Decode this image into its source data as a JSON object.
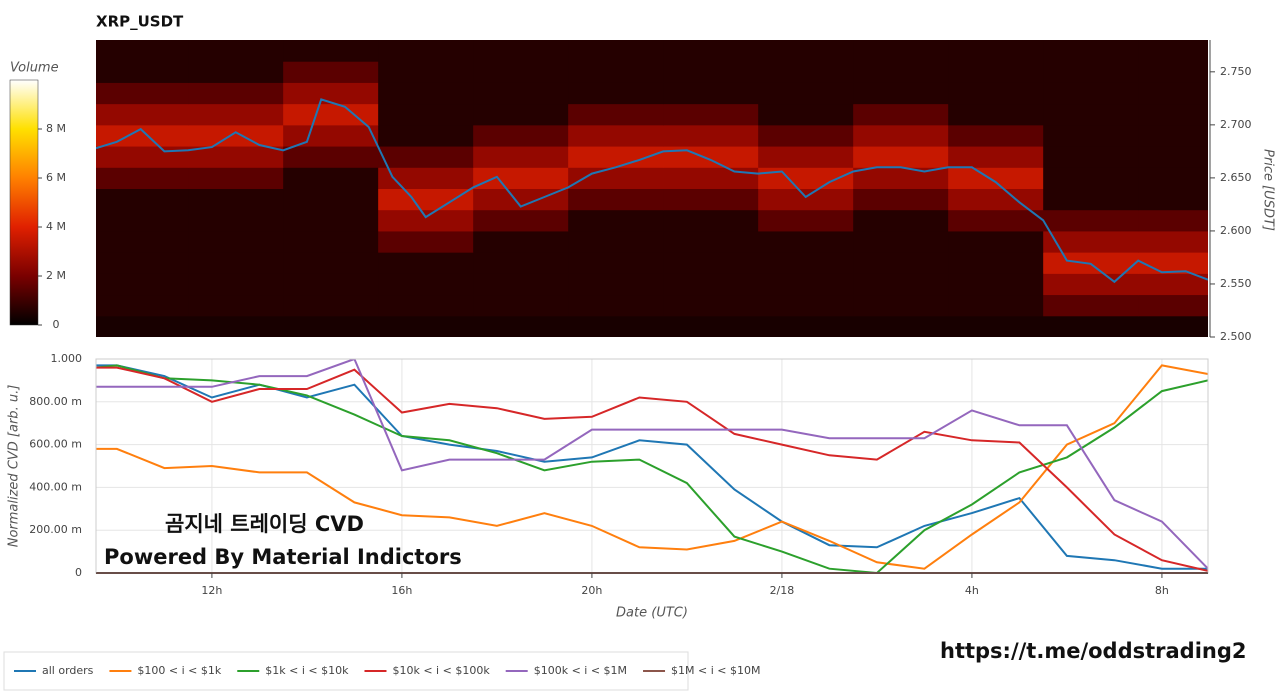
{
  "chart_data": [
    {
      "type": "heatmap",
      "title": "XRP_USDT",
      "ylabel": "Price [USDT]",
      "colorbar_label": "Volume",
      "xlim": [
        9.56,
        32.97
      ],
      "ylim": [
        2.5,
        2.78
      ],
      "yticks": [
        {
          "value": 2.5,
          "label": "2.500"
        },
        {
          "value": 2.55,
          "label": "2.550"
        },
        {
          "value": 2.6,
          "label": "2.600"
        },
        {
          "value": 2.65,
          "label": "2.650"
        },
        {
          "value": 2.7,
          "label": "2.700"
        },
        {
          "value": 2.75,
          "label": "2.750"
        }
      ],
      "clim": [
        0,
        10000000
      ],
      "cticks": [
        0,
        {
          "value": 2000000,
          "label": "2 M"
        },
        {
          "value": 4000000,
          "label": "4 M"
        },
        {
          "value": 6000000,
          "label": "6 M"
        },
        {
          "value": 8000000,
          "label": "8 M"
        }
      ],
      "x_edges": [
        9.56,
        11.5,
        13.5,
        15.5,
        17.5,
        19.5,
        21.5,
        23.5,
        25.5,
        27.5,
        29.5,
        31.5,
        32.97
      ],
      "y_edges": [
        2.5,
        2.52,
        2.54,
        2.56,
        2.58,
        2.6,
        2.62,
        2.64,
        2.66,
        2.68,
        2.7,
        2.72,
        2.74,
        2.76,
        2.78
      ],
      "z": [
        [
          400000,
          400000,
          400000,
          400000,
          400000,
          400000,
          400000,
          400000,
          400000,
          400000,
          400000,
          400000
        ],
        [
          600000,
          600000,
          600000,
          600000,
          600000,
          600000,
          600000,
          600000,
          600000,
          600000,
          1500000,
          1500000
        ],
        [
          600000,
          600000,
          600000,
          600000,
          600000,
          600000,
          600000,
          600000,
          600000,
          600000,
          2500000,
          2500000
        ],
        [
          600000,
          600000,
          600000,
          600000,
          600000,
          600000,
          600000,
          600000,
          600000,
          600000,
          3500000,
          3500000
        ],
        [
          600000,
          600000,
          600000,
          1500000,
          600000,
          600000,
          600000,
          600000,
          600000,
          600000,
          2500000,
          2500000
        ],
        [
          600000,
          600000,
          600000,
          2500000,
          1500000,
          600000,
          600000,
          1500000,
          600000,
          1500000,
          1500000,
          1500000
        ],
        [
          600000,
          600000,
          600000,
          3500000,
          2500000,
          1500000,
          1500000,
          2500000,
          1500000,
          2500000,
          600000,
          600000
        ],
        [
          1500000,
          1500000,
          600000,
          2500000,
          3500000,
          2500000,
          2500000,
          3500000,
          2500000,
          3500000,
          600000,
          600000
        ],
        [
          2500000,
          2500000,
          1500000,
          1500000,
          2500000,
          3500000,
          3500000,
          2500000,
          3500000,
          2500000,
          600000,
          600000
        ],
        [
          3500000,
          3500000,
          2500000,
          600000,
          1500000,
          2500000,
          2500000,
          1500000,
          2500000,
          1500000,
          600000,
          600000
        ],
        [
          2500000,
          2500000,
          3500000,
          600000,
          600000,
          1500000,
          1500000,
          600000,
          1500000,
          600000,
          600000,
          600000
        ],
        [
          1500000,
          1500000,
          2500000,
          600000,
          600000,
          600000,
          600000,
          600000,
          600000,
          600000,
          600000,
          600000
        ],
        [
          600000,
          600000,
          1500000,
          600000,
          600000,
          600000,
          600000,
          600000,
          600000,
          600000,
          600000,
          600000
        ],
        [
          600000,
          600000,
          600000,
          600000,
          600000,
          600000,
          600000,
          600000,
          600000,
          600000,
          600000,
          600000
        ]
      ],
      "line": {
        "color": "#1f77b4",
        "x": [
          9.56,
          10,
          10.5,
          11,
          11.5,
          12,
          12.5,
          13,
          13.5,
          14,
          14.3,
          14.8,
          15.3,
          15.8,
          16.2,
          16.5,
          17,
          17.5,
          18,
          18.5,
          19,
          19.5,
          20,
          20.5,
          21,
          21.5,
          22,
          22.5,
          23,
          23.5,
          24,
          24.5,
          25,
          25.5,
          26,
          26.5,
          27,
          27.5,
          28,
          28.5,
          29,
          29.5,
          30,
          30.5,
          31,
          31.5,
          32,
          32.5,
          32.97
        ],
        "values": [
          2.678,
          2.684,
          2.696,
          2.675,
          2.676,
          2.679,
          2.693,
          2.681,
          2.676,
          2.684,
          2.724,
          2.717,
          2.698,
          2.651,
          2.632,
          2.613,
          2.627,
          2.641,
          2.651,
          2.623,
          2.632,
          2.641,
          2.654,
          2.66,
          2.667,
          2.675,
          2.676,
          2.667,
          2.656,
          2.654,
          2.656,
          2.632,
          2.646,
          2.656,
          2.66,
          2.66,
          2.656,
          2.66,
          2.66,
          2.646,
          2.627,
          2.61,
          2.572,
          2.569,
          2.552,
          2.572,
          2.561,
          2.562,
          2.554
        ]
      }
    },
    {
      "type": "line",
      "xlabel": "Date (UTC)",
      "ylabel": "Normalized CVD [arb. u.]",
      "grid": true,
      "legend": "bottom",
      "xlim": [
        9.56,
        32.97
      ],
      "ylim": [
        0,
        1
      ],
      "xticks": [
        {
          "value": 12,
          "label": "12h"
        },
        {
          "value": 16,
          "label": "16h"
        },
        {
          "value": 20,
          "label": "20h"
        },
        {
          "value": 24,
          "label": "2/18"
        },
        {
          "value": 28,
          "label": "4h"
        },
        {
          "value": 32,
          "label": "8h"
        }
      ],
      "yticks": [
        0,
        {
          "value": 0.2,
          "label": "200.00 m"
        },
        {
          "value": 0.4,
          "label": "400.00 m"
        },
        {
          "value": 0.6,
          "label": "600.00 m"
        },
        {
          "value": 0.8,
          "label": "800.00 m"
        },
        {
          "value": 1,
          "label": "1.000"
        }
      ],
      "x": [
        9.56,
        10,
        11,
        12,
        13,
        14,
        15,
        16,
        17,
        18,
        19,
        20,
        21,
        22,
        23,
        24,
        25,
        26,
        27,
        28,
        29,
        30,
        31,
        32,
        32.97
      ],
      "series": [
        {
          "name": "all orders",
          "color": "#1f77b4",
          "values": [
            0.97,
            0.97,
            0.92,
            0.82,
            0.88,
            0.82,
            0.88,
            0.64,
            0.6,
            0.57,
            0.52,
            0.54,
            0.62,
            0.6,
            0.39,
            0.24,
            0.13,
            0.12,
            0.22,
            0.28,
            0.35,
            0.08,
            0.06,
            0.02,
            0.02
          ]
        },
        {
          "name": "$100 < i < $1k",
          "color": "#ff7f0e",
          "values": [
            0.58,
            0.58,
            0.49,
            0.5,
            0.47,
            0.47,
            0.33,
            0.27,
            0.26,
            0.22,
            0.28,
            0.22,
            0.12,
            0.11,
            0.15,
            0.24,
            0.15,
            0.05,
            0.02,
            0.18,
            0.33,
            0.6,
            0.7,
            0.97,
            0.93
          ]
        },
        {
          "name": "$1k < i < $10k",
          "color": "#2ca02c",
          "values": [
            0.96,
            0.97,
            0.91,
            0.9,
            0.88,
            0.83,
            0.74,
            0.64,
            0.62,
            0.56,
            0.48,
            0.52,
            0.53,
            0.42,
            0.17,
            0.1,
            0.02,
            0,
            0.2,
            0.32,
            0.47,
            0.54,
            0.68,
            0.85,
            0.9
          ]
        },
        {
          "name": "$10k < i < $100k",
          "color": "#d62728",
          "values": [
            0.96,
            0.96,
            0.91,
            0.8,
            0.86,
            0.86,
            0.95,
            0.75,
            0.79,
            0.77,
            0.72,
            0.73,
            0.82,
            0.8,
            0.65,
            0.6,
            0.55,
            0.53,
            0.66,
            0.62,
            0.61,
            0.4,
            0.18,
            0.06,
            0.01
          ]
        },
        {
          "name": "$100k < i < $1M",
          "color": "#9467bd",
          "values": [
            0.87,
            0.87,
            0.87,
            0.87,
            0.92,
            0.92,
            1,
            0.48,
            0.53,
            0.53,
            0.53,
            0.67,
            0.67,
            0.67,
            0.67,
            0.67,
            0.63,
            0.63,
            0.63,
            0.76,
            0.69,
            0.69,
            0.34,
            0.24,
            0.02
          ]
        },
        {
          "name": "$1M < i < $10M",
          "color": "#8c564b",
          "values": [
            0,
            0,
            0,
            0,
            0,
            0,
            0,
            0,
            0,
            0,
            0,
            0,
            0,
            0,
            0,
            0,
            0,
            0,
            0,
            0,
            0,
            0,
            0,
            0,
            0
          ]
        }
      ]
    }
  ],
  "annotations": [
    "곰지네 트레이딩 CVD",
    "Powered By Material Indictors",
    "https://t.me/oddstrading2"
  ]
}
